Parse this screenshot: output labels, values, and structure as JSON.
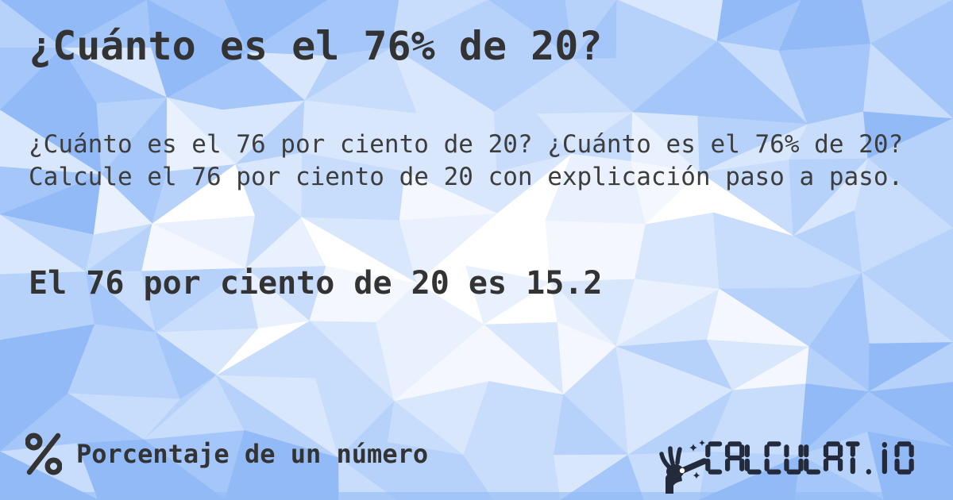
{
  "card": {
    "title": "¿Cuánto es el 76% de 20?",
    "description": "¿Cuánto es el 76 por ciento de 20? ¿Cuánto es el 76% de 20? Calcule el 76 por ciento de 20 con explicación paso a paso.",
    "answer": "El 76 por ciento de 20 es 15.2"
  },
  "footer": {
    "category": {
      "icon": "percent-icon",
      "label": "Porcentaje de un número"
    },
    "brand": {
      "icon": "magic-wand-hand-icon",
      "name": "CALCULAT.IO"
    }
  },
  "colors": {
    "text": "#333333",
    "description_text": "#3d3d3d",
    "brand": "#232a3b",
    "bottom_bar": "rgba(146,189,245,0.6)",
    "triangle_palette": [
      "#ffffff",
      "#f4f8fe",
      "#e8f1fd",
      "#d9e7fc",
      "#c8dcfb",
      "#b6d2fa",
      "#a4c6f8",
      "#92baf6"
    ]
  }
}
